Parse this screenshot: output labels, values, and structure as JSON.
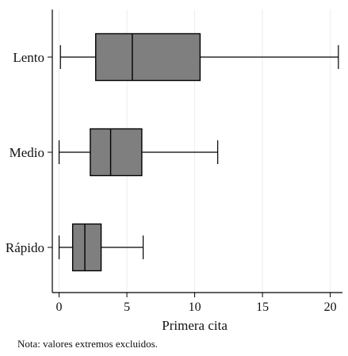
{
  "chart_data": {
    "type": "boxplot",
    "orientation": "horizontal",
    "xlabel": "Primera cita",
    "ylabel": "",
    "xlim": [
      -0.5,
      20.9
    ],
    "xticks": [
      0,
      5,
      10,
      15,
      20
    ],
    "grid": "vertical",
    "categories": [
      "Lento",
      "Medio",
      "Rápido"
    ],
    "boxes": [
      {
        "label": "Lento",
        "whisker_low": 0.1,
        "q1": 2.7,
        "median": 5.4,
        "q3": 10.4,
        "whisker_high": 20.6
      },
      {
        "label": "Medio",
        "whisker_low": 0.0,
        "q1": 2.3,
        "median": 3.8,
        "q3": 6.1,
        "whisker_high": 11.7
      },
      {
        "label": "Rápido",
        "whisker_low": 0.0,
        "q1": 1.0,
        "median": 1.9,
        "q3": 3.1,
        "whisker_high": 6.2
      }
    ],
    "box_color": "#7f7f7f",
    "line_color": "#000000"
  },
  "note": "Nota: valores extremos excluidos."
}
